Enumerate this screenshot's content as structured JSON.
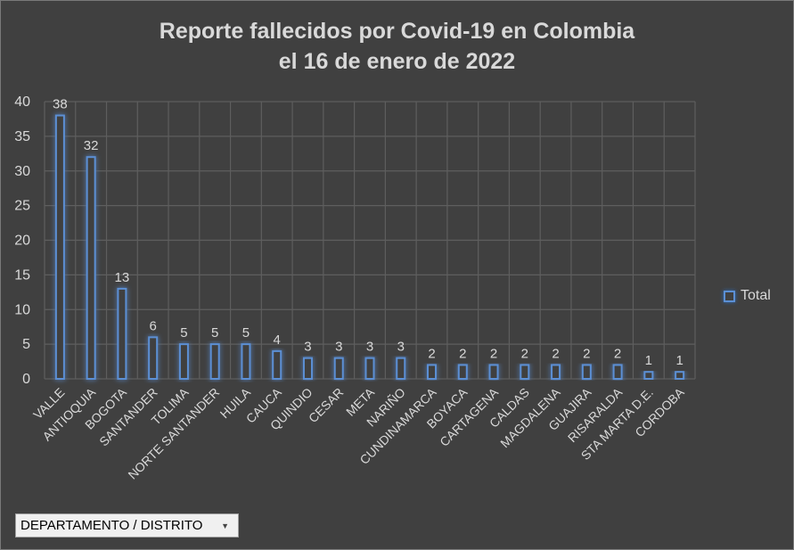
{
  "chart_data": {
    "type": "bar",
    "title_line1": "Reporte fallecidos por Covid-19 en Colombia",
    "title_line2": "el 16 de enero de 2022",
    "categories": [
      "VALLE",
      "ANTIOQUIA",
      "BOGOTA",
      "SANTANDER",
      "TOLIMA",
      "NORTE SANTANDER",
      "HUILA",
      "CAUCA",
      "QUINDIO",
      "CESAR",
      "META",
      "NARIÑO",
      "CUNDINAMARCA",
      "BOYACA",
      "CARTAGENA",
      "CALDAS",
      "MAGDALENA",
      "GUAJIRA",
      "RISARALDA",
      "STA MARTA D.E.",
      "CORDOBA"
    ],
    "series": [
      {
        "name": "Total",
        "values": [
          38,
          32,
          13,
          6,
          5,
          5,
          5,
          4,
          3,
          3,
          3,
          3,
          2,
          2,
          2,
          2,
          2,
          2,
          2,
          1,
          1
        ]
      }
    ],
    "ylim": [
      0,
      40
    ],
    "yticks": [
      0,
      5,
      10,
      15,
      20,
      25,
      30,
      35,
      40
    ],
    "grid": true,
    "legend_position": "right",
    "bar_color": "#5b8fd4"
  },
  "filter_button": {
    "label": "DEPARTAMENTO / DISTRITO"
  }
}
